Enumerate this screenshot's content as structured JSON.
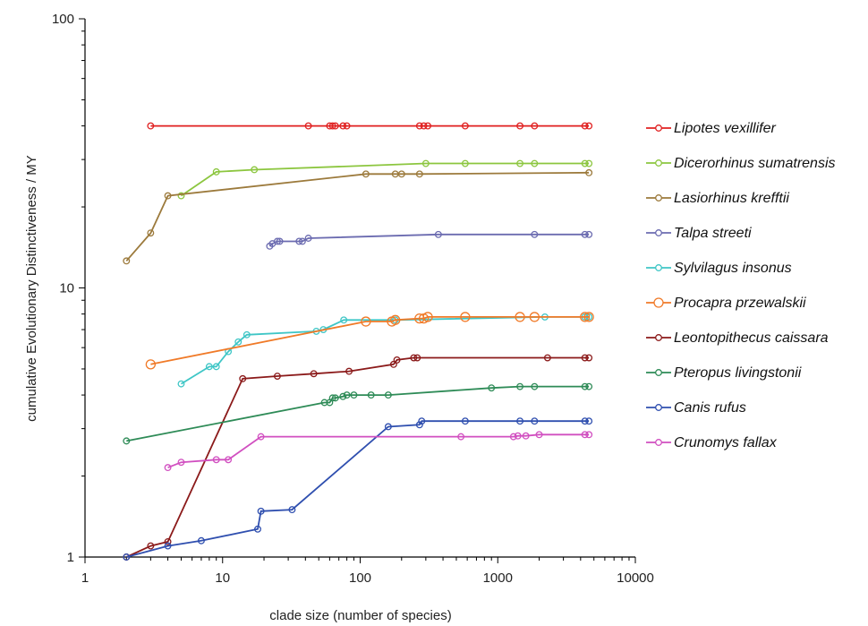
{
  "chart_data": {
    "type": "line",
    "title": "",
    "xlabel": "clade size (number of species)",
    "ylabel": "cumulative Evolutionary Distinctiveness / MY",
    "xscale": "log",
    "yscale": "log",
    "xlim": [
      1,
      10000
    ],
    "ylim": [
      1,
      100
    ],
    "x_ticks": [
      "1",
      "10",
      "100",
      "1000",
      "10000"
    ],
    "y_ticks": [
      "1",
      "10",
      "100"
    ],
    "grid": false,
    "legend_position": "right",
    "series": [
      {
        "name": "Lipotes vexillifer",
        "color": "#e02020",
        "marker": "circle-small",
        "x": [
          3,
          42,
          60,
          63,
          66,
          75,
          80,
          270,
          290,
          310,
          580,
          1450,
          1850,
          4300,
          4600
        ],
        "y": [
          40,
          40,
          40,
          40,
          40,
          40,
          40,
          40,
          40,
          40,
          40,
          40,
          40,
          40,
          40
        ]
      },
      {
        "name": "Dicerorhinus sumatrensis",
        "color": "#8cc63f",
        "marker": "circle-small",
        "x": [
          5,
          9,
          17,
          300,
          580,
          1450,
          1850,
          4300,
          4600
        ],
        "y": [
          22,
          27,
          27.5,
          29,
          29,
          29,
          29,
          29,
          29
        ]
      },
      {
        "name": "Lasiorhinus krefftii",
        "color": "#9c7a3c",
        "marker": "circle-small",
        "x": [
          2,
          3,
          4,
          110,
          180,
          200,
          270,
          4600
        ],
        "y": [
          12.6,
          16,
          22,
          26.5,
          26.5,
          26.5,
          26.5,
          26.8
        ]
      },
      {
        "name": "Talpa streeti",
        "color": "#6b6bb0",
        "marker": "circle-small",
        "x": [
          22,
          23,
          25,
          26,
          36,
          38,
          42,
          370,
          1850,
          4300,
          4600
        ],
        "y": [
          14.3,
          14.6,
          14.9,
          14.9,
          14.9,
          14.9,
          15.3,
          15.8,
          15.8,
          15.8,
          15.8
        ]
      },
      {
        "name": "Sylvilagus insonus",
        "color": "#3fc6c6",
        "marker": "circle-small",
        "x": [
          5,
          8,
          9,
          11,
          13,
          15,
          48,
          54,
          76,
          180,
          2200,
          4300,
          4600
        ],
        "y": [
          4.4,
          5.1,
          5.1,
          5.8,
          6.3,
          6.7,
          6.9,
          7.0,
          7.6,
          7.6,
          7.8,
          7.8,
          7.8
        ],
        "end_labels": [
          "",
          "",
          "",
          "",
          "",
          "",
          "",
          "",
          "",
          "",
          "",
          "",
          ""
        ]
      },
      {
        "name": "Procapra przewalskii",
        "color": "#f07a28",
        "marker": "circle-large",
        "x": [
          3,
          110,
          170,
          180,
          270,
          290,
          310,
          580,
          1450,
          1850,
          4300,
          4600
        ],
        "y": [
          5.2,
          7.5,
          7.5,
          7.6,
          7.7,
          7.7,
          7.8,
          7.8,
          7.8,
          7.8,
          7.8,
          7.8
        ]
      },
      {
        "name": "Leontopithecus caissara",
        "color": "#8b1a1a",
        "marker": "circle-small",
        "x": [
          2,
          3,
          4,
          14,
          25,
          46,
          83,
          175,
          185,
          245,
          260,
          2300,
          4300,
          4600
        ],
        "y": [
          1.0,
          1.1,
          1.14,
          4.6,
          4.7,
          4.8,
          4.9,
          5.2,
          5.4,
          5.5,
          5.5,
          5.5,
          5.5,
          5.5
        ]
      },
      {
        "name": "Pteropus livingstonii",
        "color": "#2e8b57",
        "marker": "circle-small",
        "x": [
          2,
          55,
          60,
          63,
          66,
          75,
          80,
          90,
          120,
          160,
          900,
          1450,
          1850,
          4300,
          4600
        ],
        "y": [
          2.7,
          3.75,
          3.75,
          3.9,
          3.9,
          3.95,
          4.0,
          4.0,
          4.0,
          4.0,
          4.25,
          4.3,
          4.3,
          4.3,
          4.3
        ]
      },
      {
        "name": "Canis rufus",
        "color": "#2f4faf",
        "marker": "circle-small",
        "x": [
          2,
          4,
          7,
          18,
          19,
          32,
          160,
          270,
          280,
          580,
          1450,
          1850,
          4300,
          4600
        ],
        "y": [
          1.0,
          1.1,
          1.15,
          1.27,
          1.48,
          1.5,
          3.05,
          3.1,
          3.2,
          3.2,
          3.2,
          3.2,
          3.2,
          3.2
        ]
      },
      {
        "name": "Crunomys fallax",
        "color": "#d14fc0",
        "marker": "circle-small",
        "x": [
          4,
          5,
          9,
          11,
          19,
          540,
          1300,
          1400,
          1600,
          2000,
          4300,
          4600
        ],
        "y": [
          2.15,
          2.25,
          2.3,
          2.3,
          2.8,
          2.8,
          2.8,
          2.82,
          2.82,
          2.85,
          2.85,
          2.85
        ]
      }
    ]
  }
}
